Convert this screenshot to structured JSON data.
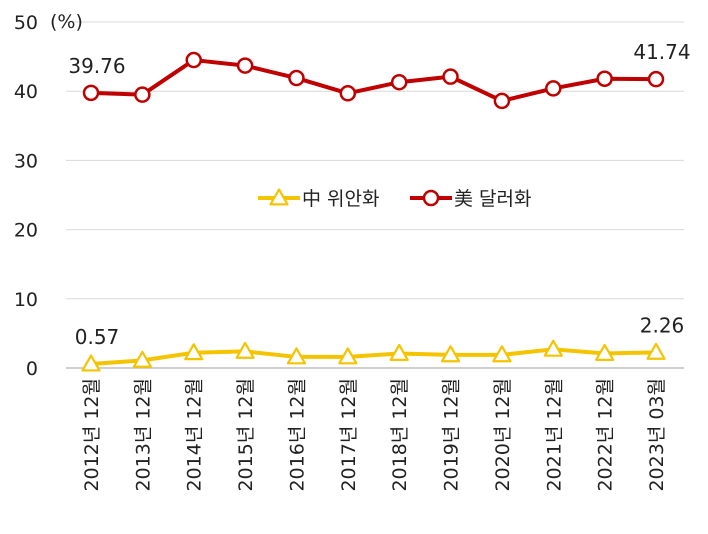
{
  "chart_data": {
    "type": "line",
    "title": "",
    "xlabel": "",
    "ylabel": "",
    "unit_label": "(%)",
    "ylim": [
      0,
      50
    ],
    "yticks": [
      0,
      10,
      20,
      30,
      40,
      50
    ],
    "grid": true,
    "legend_position": "center",
    "categories": [
      "2012년 12월",
      "2013년 12월",
      "2014년 12월",
      "2015년 12월",
      "2016년 12월",
      "2017년 12월",
      "2018년 12월",
      "2019년 12월",
      "2020년 12월",
      "2021년 12월",
      "2022년 12월",
      "2023년 03월"
    ],
    "series": [
      {
        "name": "中 위안화",
        "marker": "triangle",
        "color": "#F5C400",
        "values": [
          0.57,
          1.1,
          2.2,
          2.4,
          1.6,
          1.6,
          2.1,
          1.9,
          1.9,
          2.7,
          2.1,
          2.26
        ]
      },
      {
        "name": "美 달러화",
        "marker": "circle",
        "color": "#C00000",
        "values": [
          39.76,
          39.5,
          44.5,
          43.7,
          41.9,
          39.7,
          41.3,
          42.1,
          38.6,
          40.4,
          41.8,
          41.74
        ]
      }
    ],
    "data_labels": [
      {
        "series": 0,
        "index": 0,
        "text": "0.57"
      },
      {
        "series": 0,
        "index": 11,
        "text": "2.26"
      },
      {
        "series": 1,
        "index": 0,
        "text": "39.76"
      },
      {
        "series": 1,
        "index": 11,
        "text": "41.74"
      }
    ]
  }
}
